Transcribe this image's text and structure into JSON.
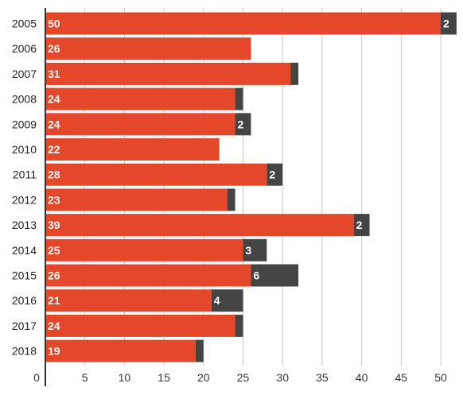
{
  "chart_data": {
    "type": "bar",
    "orientation": "horizontal",
    "stacked": true,
    "categories": [
      "2005",
      "2006",
      "2007",
      "2008",
      "2009",
      "2010",
      "2011",
      "2012",
      "2013",
      "2014",
      "2015",
      "2016",
      "2017",
      "2018"
    ],
    "series": [
      {
        "color": "#e5472b",
        "values": [
          50,
          26,
          31,
          24,
          24,
          22,
          28,
          23,
          39,
          25,
          26,
          21,
          24,
          19
        ],
        "labels": [
          "50",
          "26",
          "31",
          "24",
          "24",
          "22",
          "28",
          "23",
          "39",
          "25",
          "26",
          "21",
          "24",
          "19"
        ]
      },
      {
        "color": "#444444",
        "values": [
          2,
          0,
          1,
          1,
          2,
          0,
          2,
          1,
          2,
          3,
          6,
          4,
          1,
          1
        ],
        "labels": [
          "2",
          "",
          "",
          "",
          "2",
          "",
          "2",
          "",
          "2",
          "3",
          "6",
          "4",
          "",
          ""
        ]
      }
    ],
    "xlim": [
      0,
      52
    ],
    "xticks": [
      0,
      5,
      10,
      15,
      20,
      25,
      30,
      35,
      40,
      45,
      50
    ],
    "xtick_labels": [
      "0",
      "5",
      "10",
      "15",
      "20",
      "25",
      "30",
      "35",
      "40",
      "45",
      "50"
    ],
    "grid": true,
    "title": "",
    "xlabel": "",
    "ylabel": ""
  }
}
